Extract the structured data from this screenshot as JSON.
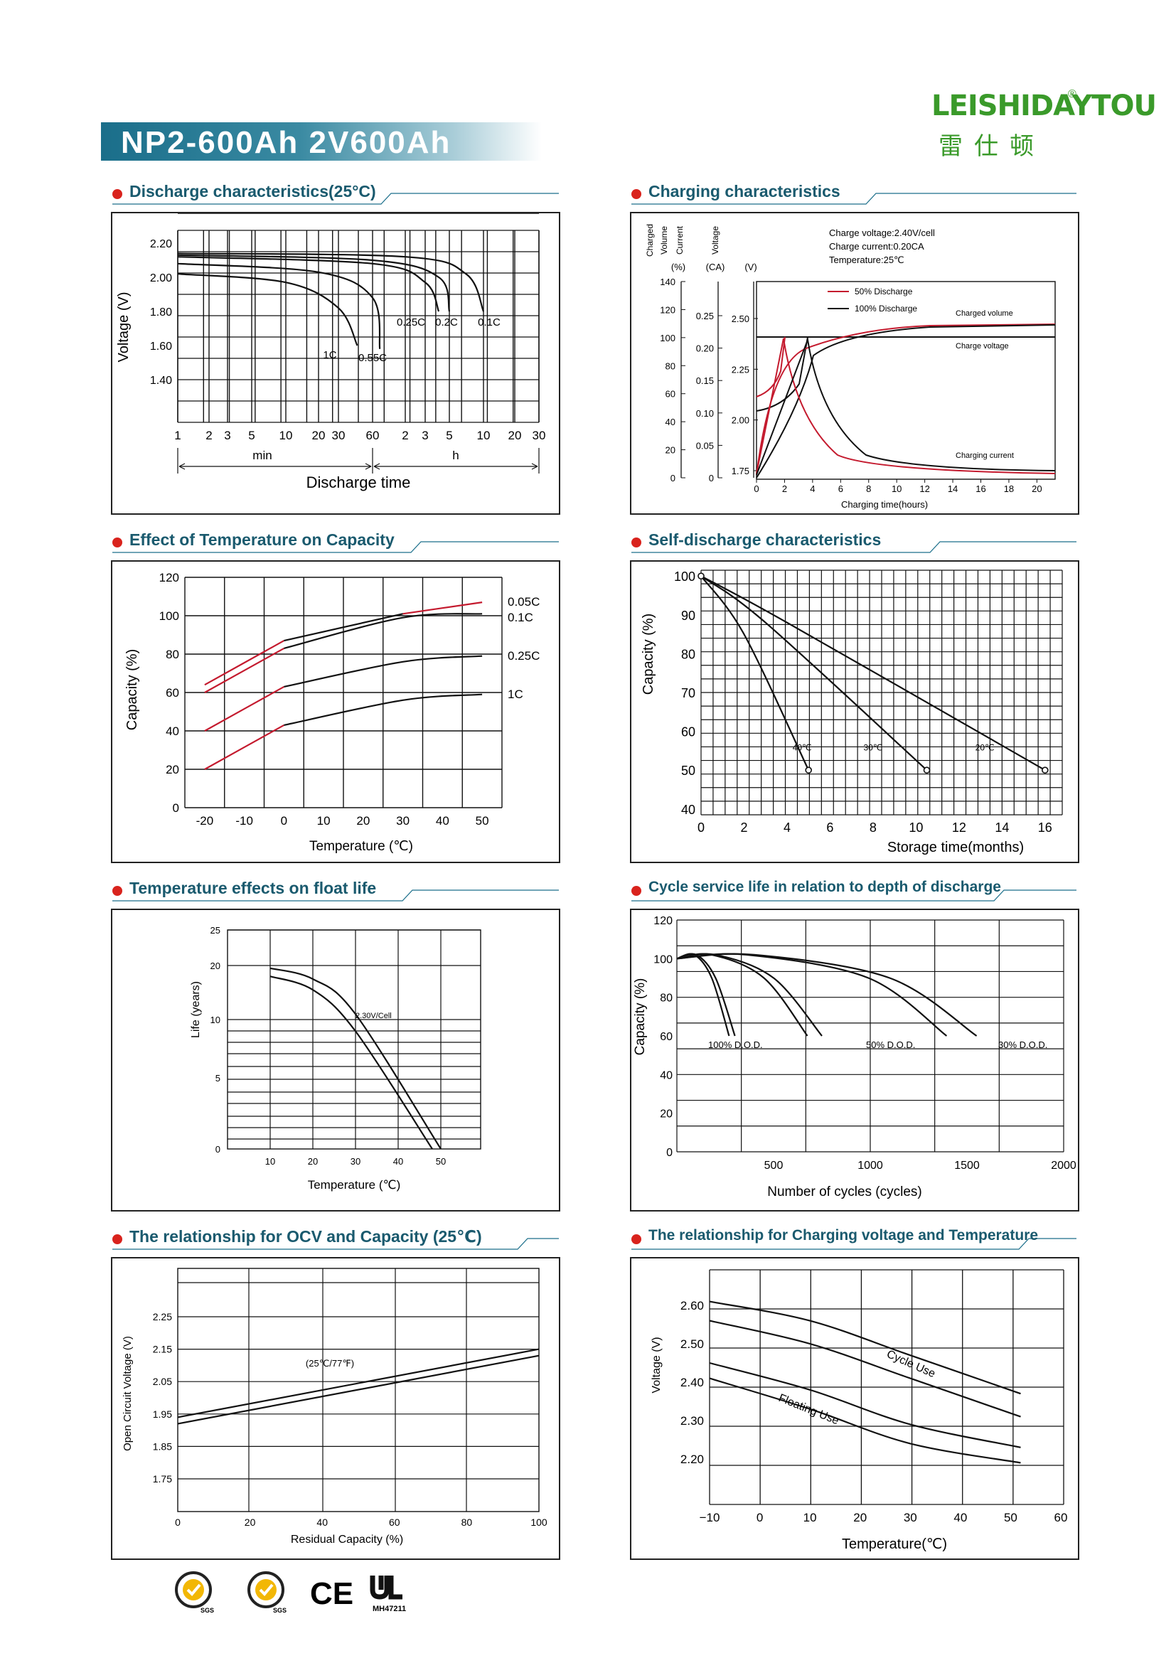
{
  "header": {
    "title": "NP2-600Ah 2V600Ah",
    "brand_latin": "LEISHIDAYTOU",
    "brand_reg": "®",
    "brand_cjk": "雷仕顿"
  },
  "colors": {
    "accent": "#1a6e8a",
    "dot": "#d9231d",
    "brand": "#3a9a2a",
    "red_curve": "#c41a2e"
  },
  "sections": {
    "discharge": "Discharge characteristics(25°C)",
    "charging": "Charging characteristics",
    "temp_capacity": "Effect of Temperature on Capacity",
    "self_discharge": "Self-discharge characteristics",
    "float_life": "Temperature effects on float life",
    "cycle_life": "Cycle service life in relation to depth of discharge",
    "ocv": "The relationship  for OCV and Capacity (25℃)",
    "charge_voltage": "The relationship for Charging voltage and Temperature"
  },
  "certs": {
    "ul_code": "MH47211",
    "sgs1": "SGS",
    "sgs2": "SGS",
    "ce": "CE"
  },
  "chart_data": [
    {
      "id": "discharge",
      "type": "line",
      "ylabel": "Voltage (V)",
      "xlabel": "Discharge time",
      "yticks": [
        "2.20",
        "2.00",
        "1.80",
        "1.60",
        "1.40"
      ],
      "xtick_labels": [
        "1",
        "2",
        "3",
        "5",
        "10",
        "20",
        "30",
        "60",
        "2",
        "3",
        "5",
        "10",
        "20",
        "30"
      ],
      "x_unit_labels": [
        "min",
        "h"
      ],
      "series": [
        {
          "name": "1C",
          "points": [
            [
              1,
              2.02
            ],
            [
              10,
              1.97
            ],
            [
              30,
              1.82
            ],
            [
              44,
              1.6
            ]
          ]
        },
        {
          "name": "0.55C",
          "points": [
            [
              1,
              2.08
            ],
            [
              20,
              2.03
            ],
            [
              60,
              1.88
            ],
            [
              70,
              1.58
            ]
          ]
        },
        {
          "name": "0.25C",
          "points": [
            [
              1,
              2.12
            ],
            [
              60,
              2.08
            ],
            [
              180,
              1.97
            ],
            [
              240,
              1.8
            ]
          ]
        },
        {
          "name": "0.2C",
          "points": [
            [
              1,
              2.13
            ],
            [
              60,
              2.1
            ],
            [
              240,
              2.0
            ],
            [
              300,
              1.8
            ]
          ]
        },
        {
          "name": "0.1C",
          "points": [
            [
              1,
              2.14
            ],
            [
              120,
              2.12
            ],
            [
              420,
              2.02
            ],
            [
              600,
              1.8
            ]
          ]
        }
      ]
    },
    {
      "id": "charging",
      "type": "line",
      "legend_header": [
        "Charged Volume",
        "Current",
        "Voltage"
      ],
      "axis_units": [
        "(%)",
        "(CA)",
        "(V)"
      ],
      "notes": [
        "Charge voltage:2.40V/cell",
        "Charge current:0.20CA",
        "Temperature:25℃"
      ],
      "xlabel": "Charging time(hours)",
      "xticks": [
        "0",
        "2",
        "4",
        "6",
        "8",
        "10",
        "12",
        "14",
        "16",
        "18",
        "20"
      ],
      "ticks_volume": [
        "140",
        "120",
        "100",
        "80",
        "60",
        "40",
        "20",
        "0"
      ],
      "ticks_current": [
        "0.25",
        "0.20",
        "0.15",
        "0.10",
        "0.05",
        "0"
      ],
      "ticks_voltage": [
        "2.50",
        "2.25",
        "2.00",
        "1.75"
      ],
      "legend": [
        "50% Discharge",
        "100% Discharge"
      ],
      "curve_labels": [
        "Charged volume",
        "Charge voltage",
        "Charging current"
      ]
    },
    {
      "id": "temp_capacity",
      "type": "line",
      "ylabel": "Capacity (%)",
      "xlabel": "Temperature (℃)",
      "xticks": [
        "-20",
        "-10",
        "0",
        "10",
        "20",
        "30",
        "40",
        "50"
      ],
      "yticks": [
        "120",
        "100",
        "80",
        "60",
        "40",
        "20",
        "0"
      ],
      "series": [
        {
          "name": "0.05C",
          "points": [
            [
              -20,
              64
            ],
            [
              0,
              87
            ],
            [
              30,
              101
            ],
            [
              50,
              107
            ]
          ]
        },
        {
          "name": "0.1C",
          "points": [
            [
              -20,
              60
            ],
            [
              0,
              83
            ],
            [
              30,
              99
            ],
            [
              50,
              101
            ]
          ]
        },
        {
          "name": "0.25C",
          "points": [
            [
              -20,
              40
            ],
            [
              0,
              63
            ],
            [
              30,
              76
            ],
            [
              50,
              79
            ]
          ]
        },
        {
          "name": "1C",
          "points": [
            [
              -20,
              20
            ],
            [
              0,
              43
            ],
            [
              30,
              56
            ],
            [
              50,
              59
            ]
          ]
        }
      ]
    },
    {
      "id": "self_discharge",
      "type": "line",
      "ylabel": "Capacity (%)",
      "xlabel": "Storage time(months)",
      "xticks": [
        "0",
        "2",
        "4",
        "6",
        "8",
        "10",
        "12",
        "14",
        "16"
      ],
      "yticks": [
        "100",
        "90",
        "80",
        "70",
        "60",
        "50",
        "40"
      ],
      "series": [
        {
          "name": "40℃",
          "points": [
            [
              0,
              100
            ],
            [
              2,
              85
            ],
            [
              5,
              50
            ]
          ]
        },
        {
          "name": "30℃",
          "points": [
            [
              0,
              100
            ],
            [
              3,
              88
            ],
            [
              10.5,
              50
            ]
          ]
        },
        {
          "name": "20℃",
          "points": [
            [
              0,
              100
            ],
            [
              4,
              88
            ],
            [
              16,
              50
            ]
          ]
        }
      ]
    },
    {
      "id": "float_life",
      "type": "line",
      "ylabel": "Life (years)",
      "xlabel": "Temperature (℃)",
      "xticks": [
        "10",
        "20",
        "30",
        "40",
        "50"
      ],
      "yticks": [
        "25",
        "20",
        "10",
        "5",
        "0"
      ],
      "annotation": "2.30V/Cell",
      "series": [
        {
          "name": "upper",
          "points": [
            [
              10,
              19.5
            ],
            [
              20,
              17.5
            ],
            [
              30,
              11
            ],
            [
              50,
              0
            ]
          ]
        },
        {
          "name": "lower",
          "points": [
            [
              10,
              18
            ],
            [
              20,
              15.5
            ],
            [
              30,
              9
            ],
            [
              48,
              0
            ]
          ]
        }
      ]
    },
    {
      "id": "cycle_life",
      "type": "line",
      "ylabel": "Capacity (%)",
      "xlabel": "Number of cycles (cycles)",
      "xticks": [
        "500",
        "1000",
        "1500",
        "2000"
      ],
      "yticks": [
        "120",
        "100",
        "80",
        "60",
        "40",
        "20",
        "0"
      ],
      "series": [
        {
          "name": "100% D.O.D.",
          "points": [
            [
              0,
              100
            ],
            [
              100,
              102
            ],
            [
              200,
              90
            ],
            [
              300,
              60
            ]
          ]
        },
        {
          "name": "50% D.O.D.",
          "points": [
            [
              0,
              100
            ],
            [
              200,
              102
            ],
            [
              500,
              90
            ],
            [
              750,
              60
            ]
          ]
        },
        {
          "name": "30% D.O.D.",
          "points": [
            [
              0,
              100
            ],
            [
              400,
              102
            ],
            [
              1100,
              90
            ],
            [
              1550,
              60
            ]
          ]
        }
      ]
    },
    {
      "id": "ocv",
      "type": "line",
      "ylabel": "Open Circuit Voltage (V)",
      "xlabel": "Residual Capacity (%)",
      "xticks": [
        "0",
        "20",
        "40",
        "60",
        "80",
        "100"
      ],
      "yticks": [
        "2.25",
        "2.15",
        "2.05",
        "1.95",
        "1.85",
        "1.75"
      ],
      "annotation": "(25℃/77℉)",
      "series": [
        {
          "name": "upper",
          "points": [
            [
              0,
              1.94
            ],
            [
              100,
              2.15
            ]
          ]
        },
        {
          "name": "lower",
          "points": [
            [
              0,
              1.92
            ],
            [
              100,
              2.13
            ]
          ]
        }
      ]
    },
    {
      "id": "charge_voltage",
      "type": "line",
      "ylabel": "Voltage (V)",
      "xlabel": "Temperature(℃)",
      "xticks": [
        "−10",
        "0",
        "10",
        "20",
        "30",
        "40",
        "50",
        "60"
      ],
      "yticks": [
        "2.60",
        "2.50",
        "2.40",
        "2.30",
        "2.20"
      ],
      "band_labels": [
        "Cycle Use",
        "Floating Use"
      ],
      "series": [
        {
          "name": "cycle-upper",
          "points": [
            [
              -10,
              2.61
            ],
            [
              10,
              2.56
            ],
            [
              30,
              2.47
            ],
            [
              52,
              2.37
            ]
          ]
        },
        {
          "name": "cycle-lower",
          "points": [
            [
              -10,
              2.56
            ],
            [
              10,
              2.5
            ],
            [
              30,
              2.41
            ],
            [
              52,
              2.31
            ]
          ]
        },
        {
          "name": "float-upper",
          "points": [
            [
              -10,
              2.45
            ],
            [
              10,
              2.38
            ],
            [
              30,
              2.29
            ],
            [
              52,
              2.23
            ]
          ]
        },
        {
          "name": "float-lower",
          "points": [
            [
              -10,
              2.41
            ],
            [
              10,
              2.33
            ],
            [
              30,
              2.24
            ],
            [
              52,
              2.19
            ]
          ]
        }
      ]
    }
  ]
}
